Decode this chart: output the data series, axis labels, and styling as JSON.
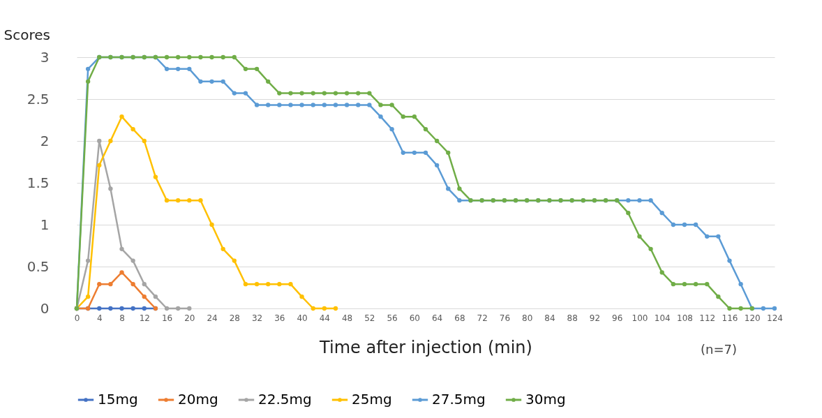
{
  "chart_data": {
    "type": "line",
    "ylabel": "Scores",
    "xlabel": "Time after injection (min)",
    "annotations": [
      "(n=7)"
    ],
    "xlim": [
      0,
      124
    ],
    "xticks": [
      0,
      4,
      8,
      12,
      16,
      20,
      24,
      28,
      32,
      36,
      40,
      44,
      48,
      52,
      56,
      60,
      64,
      68,
      72,
      76,
      80,
      84,
      88,
      92,
      96,
      100,
      104,
      108,
      112,
      116,
      120,
      124
    ],
    "ylim": [
      0,
      3
    ],
    "yticks": [
      0,
      0.5,
      1,
      1.5,
      2,
      2.5,
      3
    ],
    "grid": "y",
    "legend": "bottom",
    "marker": "circle",
    "line_style": "solid",
    "series": [
      {
        "name": "15mg",
        "color": "#4472c4",
        "x": [
          0,
          2,
          4,
          6,
          8,
          10,
          12,
          14
        ],
        "values": [
          0,
          0,
          0,
          0,
          0,
          0,
          0,
          0
        ]
      },
      {
        "name": "20mg",
        "color": "#ed7d31",
        "x": [
          0,
          2,
          4,
          6,
          8,
          10,
          12,
          14
        ],
        "values": [
          0,
          0,
          0.29,
          0.29,
          0.43,
          0.29,
          0.14,
          0
        ]
      },
      {
        "name": "22.5mg",
        "color": "#a5a5a5",
        "x": [
          0,
          2,
          4,
          6,
          8,
          10,
          12,
          14,
          16,
          18,
          20
        ],
        "values": [
          0,
          0.57,
          2,
          1.43,
          0.71,
          0.57,
          0.29,
          0.14,
          0,
          0,
          0
        ]
      },
      {
        "name": "25mg",
        "color": "#ffc000",
        "x": [
          0,
          2,
          4,
          6,
          8,
          10,
          12,
          14,
          16,
          18,
          20,
          22,
          24,
          26,
          28,
          30,
          32,
          34,
          36,
          38,
          40,
          42,
          44,
          46
        ],
        "values": [
          0,
          0.14,
          1.71,
          2,
          2.29,
          2.14,
          2,
          1.57,
          1.29,
          1.29,
          1.29,
          1.29,
          1,
          0.71,
          0.57,
          0.29,
          0.29,
          0.29,
          0.29,
          0.29,
          0.14,
          0,
          0,
          0
        ]
      },
      {
        "name": "27.5mg",
        "color": "#5b9bd5",
        "x": [
          0,
          2,
          4,
          6,
          8,
          10,
          12,
          14,
          16,
          18,
          20,
          22,
          24,
          26,
          28,
          30,
          32,
          34,
          36,
          38,
          40,
          42,
          44,
          46,
          48,
          50,
          52,
          54,
          56,
          58,
          60,
          62,
          64,
          66,
          68,
          70,
          72,
          74,
          76,
          78,
          80,
          82,
          84,
          86,
          88,
          90,
          92,
          94,
          96,
          98,
          100,
          102,
          104,
          106,
          108,
          110,
          112,
          114,
          116,
          118,
          120,
          122,
          124
        ],
        "values": [
          0,
          2.86,
          3,
          3,
          3,
          3,
          3,
          3,
          2.86,
          2.86,
          2.86,
          2.71,
          2.71,
          2.71,
          2.57,
          2.57,
          2.43,
          2.43,
          2.43,
          2.43,
          2.43,
          2.43,
          2.43,
          2.43,
          2.43,
          2.43,
          2.43,
          2.29,
          2.14,
          1.86,
          1.86,
          1.86,
          1.71,
          1.43,
          1.29,
          1.29,
          1.29,
          1.29,
          1.29,
          1.29,
          1.29,
          1.29,
          1.29,
          1.29,
          1.29,
          1.29,
          1.29,
          1.29,
          1.29,
          1.29,
          1.29,
          1.29,
          1.14,
          1,
          1,
          1,
          0.86,
          0.86,
          0.57,
          0.29,
          0,
          0,
          0
        ]
      },
      {
        "name": "30mg",
        "color": "#70ad47",
        "x": [
          0,
          2,
          4,
          6,
          8,
          10,
          12,
          14,
          16,
          18,
          20,
          22,
          24,
          26,
          28,
          30,
          32,
          34,
          36,
          38,
          40,
          42,
          44,
          46,
          48,
          50,
          52,
          54,
          56,
          58,
          60,
          62,
          64,
          66,
          68,
          70,
          72,
          74,
          76,
          78,
          80,
          82,
          84,
          86,
          88,
          90,
          92,
          94,
          96,
          98,
          100,
          102,
          104,
          106,
          108,
          110,
          112,
          114,
          116,
          118,
          120
        ],
        "values": [
          0,
          2.71,
          3,
          3,
          3,
          3,
          3,
          3,
          3,
          3,
          3,
          3,
          3,
          3,
          3,
          2.86,
          2.86,
          2.71,
          2.57,
          2.57,
          2.57,
          2.57,
          2.57,
          2.57,
          2.57,
          2.57,
          2.57,
          2.43,
          2.43,
          2.29,
          2.29,
          2.14,
          2,
          1.86,
          1.43,
          1.29,
          1.29,
          1.29,
          1.29,
          1.29,
          1.29,
          1.29,
          1.29,
          1.29,
          1.29,
          1.29,
          1.29,
          1.29,
          1.29,
          1.14,
          0.86,
          0.71,
          0.43,
          0.29,
          0.29,
          0.29,
          0.29,
          0.14,
          0,
          0,
          0
        ]
      }
    ]
  }
}
